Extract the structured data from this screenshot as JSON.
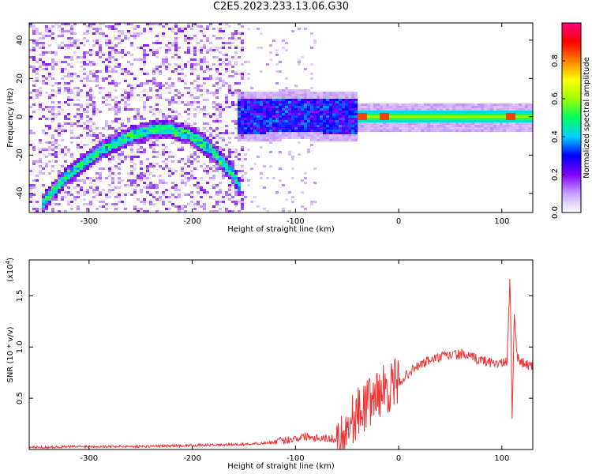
{
  "title": "C2E5.2023.233.13.06.G30",
  "chart_data": [
    {
      "type": "heatmap",
      "xlabel": "Height of straight line (km)",
      "ylabel": "Frequency (Hz)",
      "xlim": [
        -358,
        130
      ],
      "ylim": [
        -50,
        49
      ],
      "x_ticks": [
        -300,
        -200,
        -100,
        0,
        100
      ],
      "y_ticks": [
        -40,
        -20,
        0,
        20,
        40
      ],
      "colorbar": {
        "label": "Normalized spectral amplitude",
        "range": [
          0,
          1
        ],
        "ticks": [
          0.0,
          0.2,
          0.4,
          0.6,
          0.8
        ],
        "colors": [
          "#ffffff",
          "#c8a0ff",
          "#8000ff",
          "#0000ff",
          "#00d0ff",
          "#00ff60",
          "#a0ff00",
          "#ffff00",
          "#ff8000",
          "#ff0000",
          "#ff0080"
        ]
      },
      "features": {
        "arc": {
          "x": [
            -345,
            -320,
            -290,
            -260,
            -240,
            -220,
            -200,
            -180,
            -160,
            -152
          ],
          "y": [
            -45,
            -30,
            -18,
            -10,
            -7,
            -7,
            -10,
            -18,
            -30,
            -40
          ]
        },
        "band": {
          "x": [
            -155,
            -100,
            -50,
            0,
            50,
            100,
            130
          ],
          "y": [
            0,
            1,
            0,
            0,
            0,
            0,
            0
          ],
          "peak_amplitude_x": [
            -35,
            -13,
            108
          ]
        }
      }
    },
    {
      "type": "line",
      "xlabel": "Height of straight line (km)",
      "ylabel": "SNR (10 * v/v)",
      "ylabel_multiplier": "(x10",
      "ylabel_multiplier_exp": "4",
      "ylabel_multiplier_close": ")",
      "xlim": [
        -358,
        130
      ],
      "ylim": [
        0,
        1.85
      ],
      "x_ticks": [
        -300,
        -200,
        -100,
        0,
        100
      ],
      "y_ticks": [
        0.5,
        1.0,
        1.5
      ],
      "y_tick_labels": [
        "0.5",
        "1.0",
        "1.5"
      ],
      "series": [
        {
          "color": "#ee3333",
          "x": [
            -358,
            -300,
            -250,
            -200,
            -150,
            -120,
            -100,
            -90,
            -80,
            -70,
            -60,
            -55,
            -50,
            -45,
            -40,
            -35,
            -30,
            -25,
            -20,
            -15,
            -10,
            -5,
            0,
            10,
            20,
            30,
            40,
            50,
            60,
            70,
            80,
            90,
            100,
            105,
            108,
            110,
            112,
            115,
            120,
            130
          ],
          "y": [
            0.02,
            0.03,
            0.03,
            0.04,
            0.05,
            0.07,
            0.11,
            0.13,
            0.12,
            0.11,
            0.1,
            0.13,
            0.2,
            0.3,
            0.35,
            0.4,
            0.45,
            0.5,
            0.55,
            0.58,
            0.6,
            0.62,
            0.65,
            0.75,
            0.82,
            0.87,
            0.9,
            0.92,
            0.93,
            0.9,
            0.87,
            0.85,
            0.84,
            0.85,
            1.7,
            0.3,
            1.3,
            0.9,
            0.85,
            0.8
          ]
        }
      ]
    }
  ]
}
